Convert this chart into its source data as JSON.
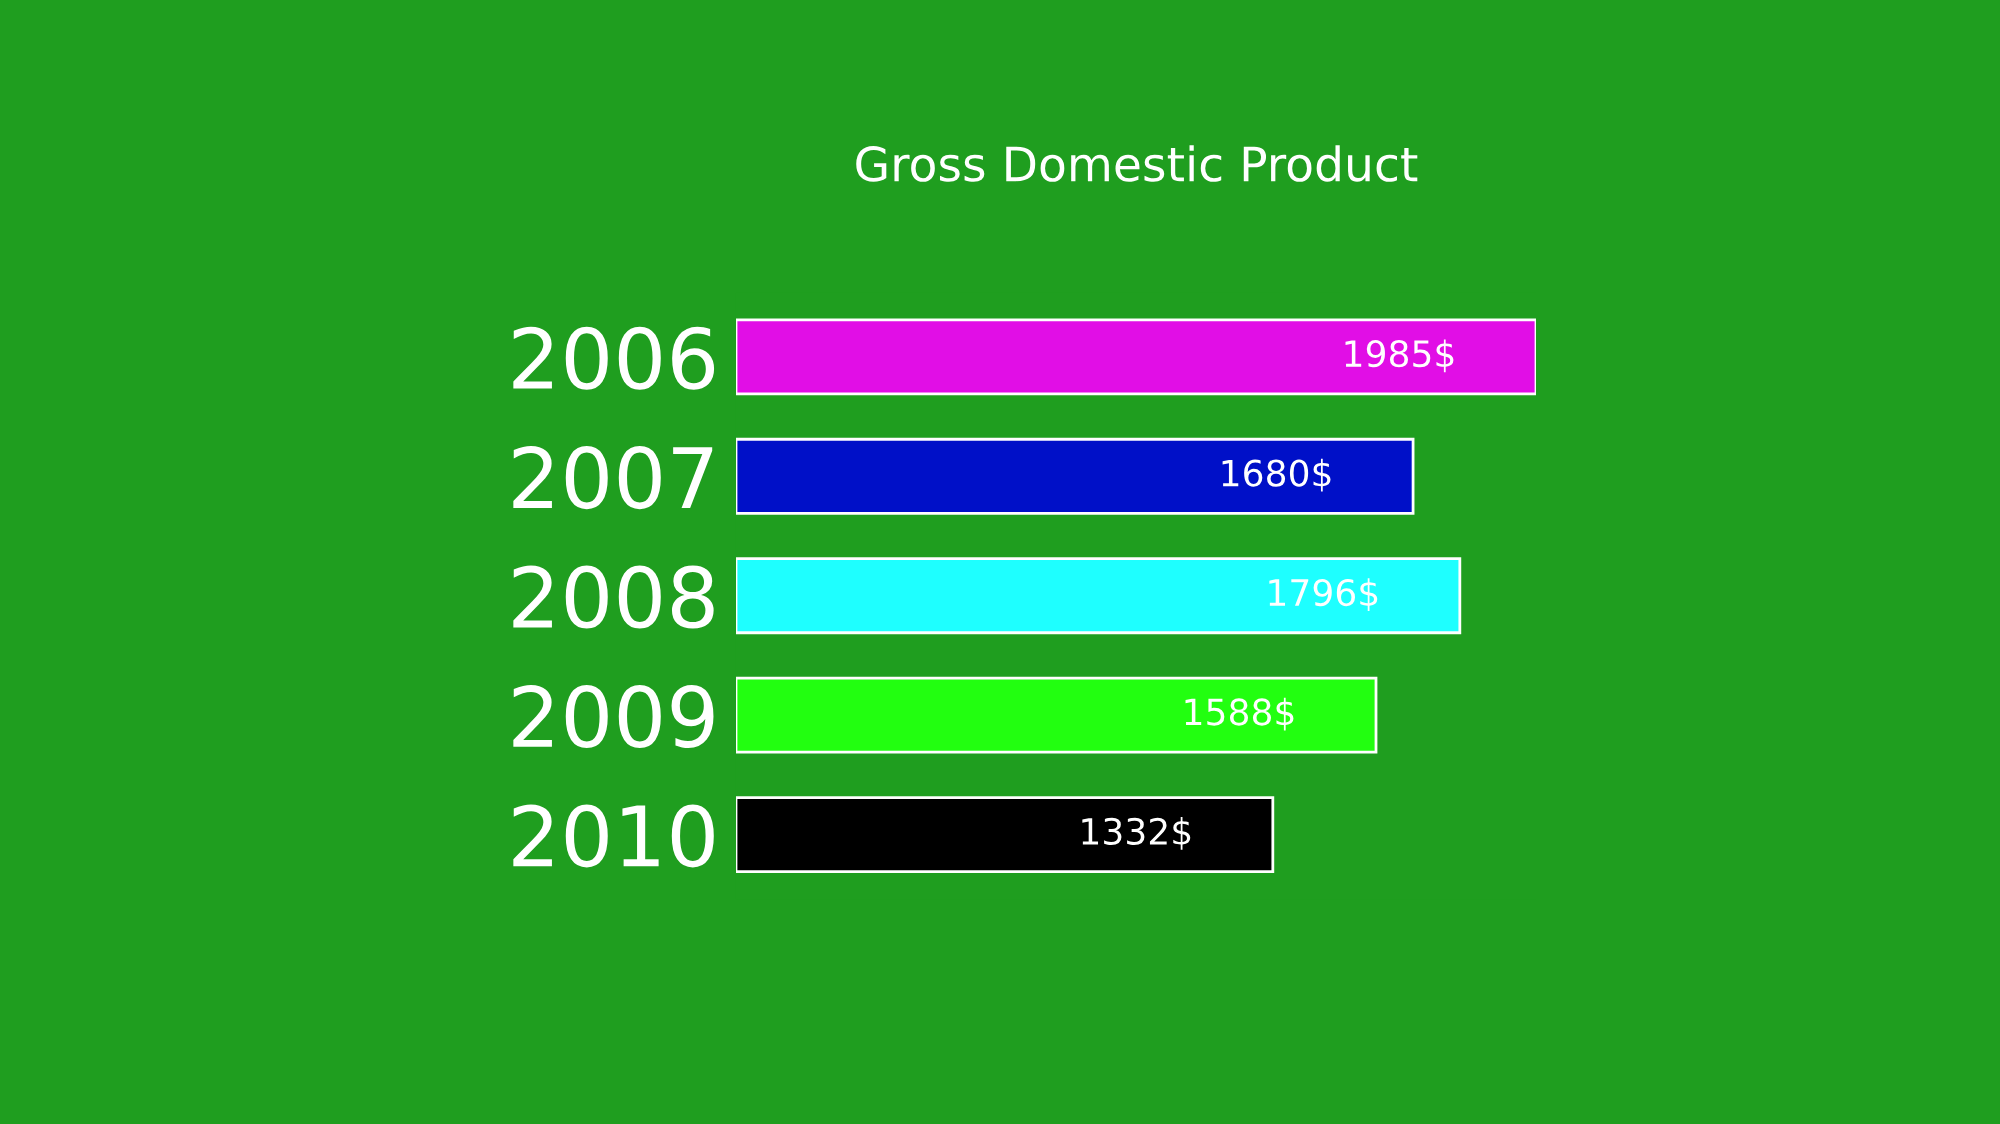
{
  "chart_data": {
    "type": "bar",
    "orientation": "horizontal",
    "title": "Gross Domestic Product",
    "categories": [
      "2006",
      "2007",
      "2008",
      "2009",
      "2010"
    ],
    "values": [
      1985,
      1680,
      1796,
      1588,
      1332
    ],
    "value_labels": [
      "1985$",
      "1680$",
      "1796$",
      "1588$",
      "1332$"
    ],
    "colors": [
      "#e10ee6",
      "#0010c8",
      "#1effff",
      "#22ff10",
      "#000000"
    ]
  }
}
